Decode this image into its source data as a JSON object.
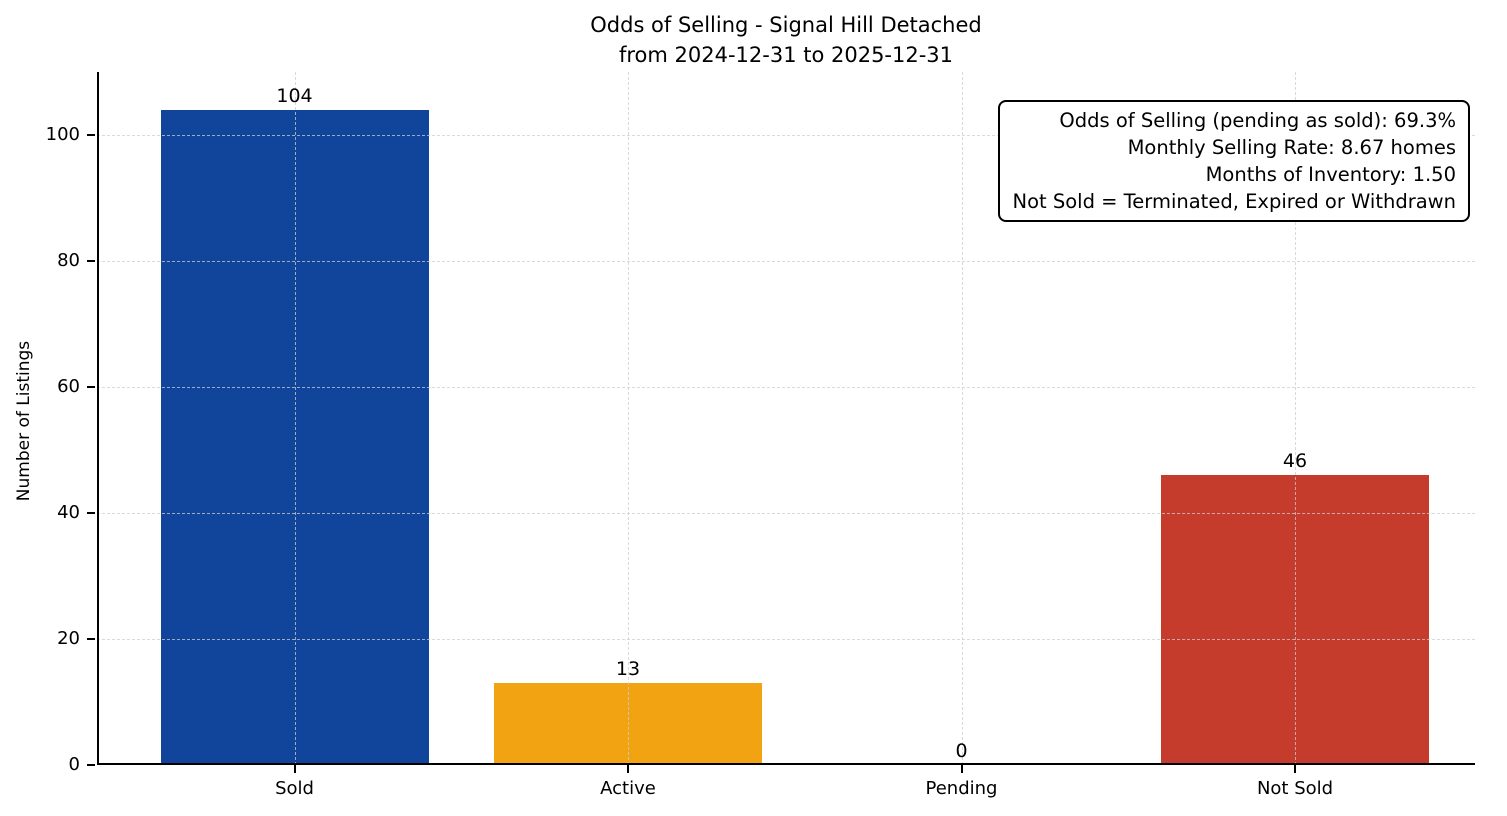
{
  "chart_data": {
    "type": "bar",
    "title": "Odds of Selling - Signal Hill Detached",
    "subtitle": "from 2024-12-31 to 2025-12-31",
    "categories": [
      "Sold",
      "Active",
      "Pending",
      "Not Sold"
    ],
    "values": [
      104,
      13,
      0,
      46
    ],
    "bar_value_labels": [
      "104",
      "13",
      "0",
      "46"
    ],
    "bar_colors": [
      "#11459c",
      "#f2a311",
      null,
      "#c53b2c"
    ],
    "xlabel": "",
    "ylabel": "Number of Listings",
    "yticks": [
      0,
      20,
      40,
      60,
      80,
      100
    ],
    "ylim": [
      0,
      110
    ],
    "grid": "both, dashed, light-gray",
    "legend": "none",
    "annotation": {
      "position": "top-right",
      "align": "right",
      "lines": [
        "Odds of Selling (pending as sold): 69.3%",
        "Monthly Selling Rate: 8.67 homes",
        "Months of Inventory: 1.50",
        "Not Sold = Terminated, Expired or Withdrawn"
      ]
    }
  },
  "colors": {
    "background": "#ffffff",
    "axis": "#000000",
    "grid": "#d9d9d9",
    "text": "#000000",
    "bar_sold": "#11459c",
    "bar_active": "#f2a311",
    "bar_not_sold": "#c53b2c"
  }
}
